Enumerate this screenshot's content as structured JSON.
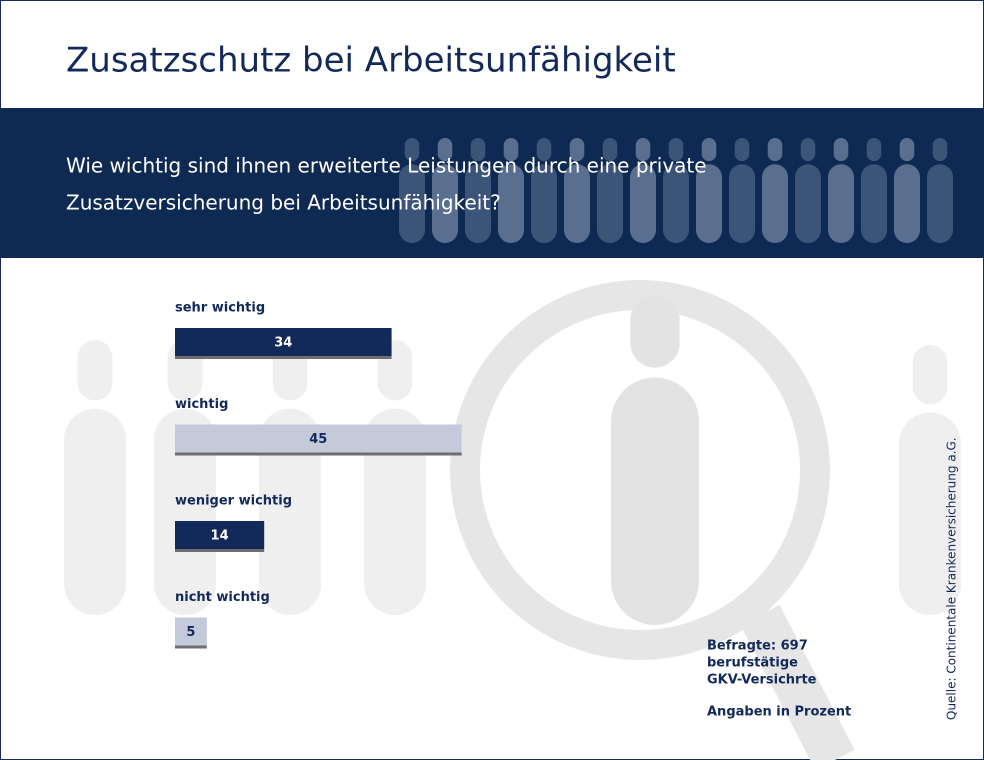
{
  "chart_data": {
    "type": "bar",
    "title": "Zusatzschutz bei Arbeitsunfähigkeit",
    "subtitle_lines": [
      "Wie wichtig sind ihnen erweiterte Leistungen durch eine private",
      "Zusatzversicherung bei Arbeitsunfähigkeit?"
    ],
    "categories": [
      "sehr wichtig",
      "wichtig",
      "weniger wichtig",
      "nicht wichtig"
    ],
    "values": [
      34,
      45,
      14,
      5
    ],
    "colors": [
      "#13295a",
      "#c5cada",
      "#13295a",
      "#c5cada"
    ],
    "label_colors": [
      "#ffffff",
      "#13295a",
      "#ffffff",
      "#13295a"
    ],
    "notes": [
      "Befragte: 697",
      "berufstätige",
      "GKV-Versichrte",
      "Angaben in Prozent"
    ],
    "source": "Quelle: Continentale Krankenversicherung a.G."
  }
}
